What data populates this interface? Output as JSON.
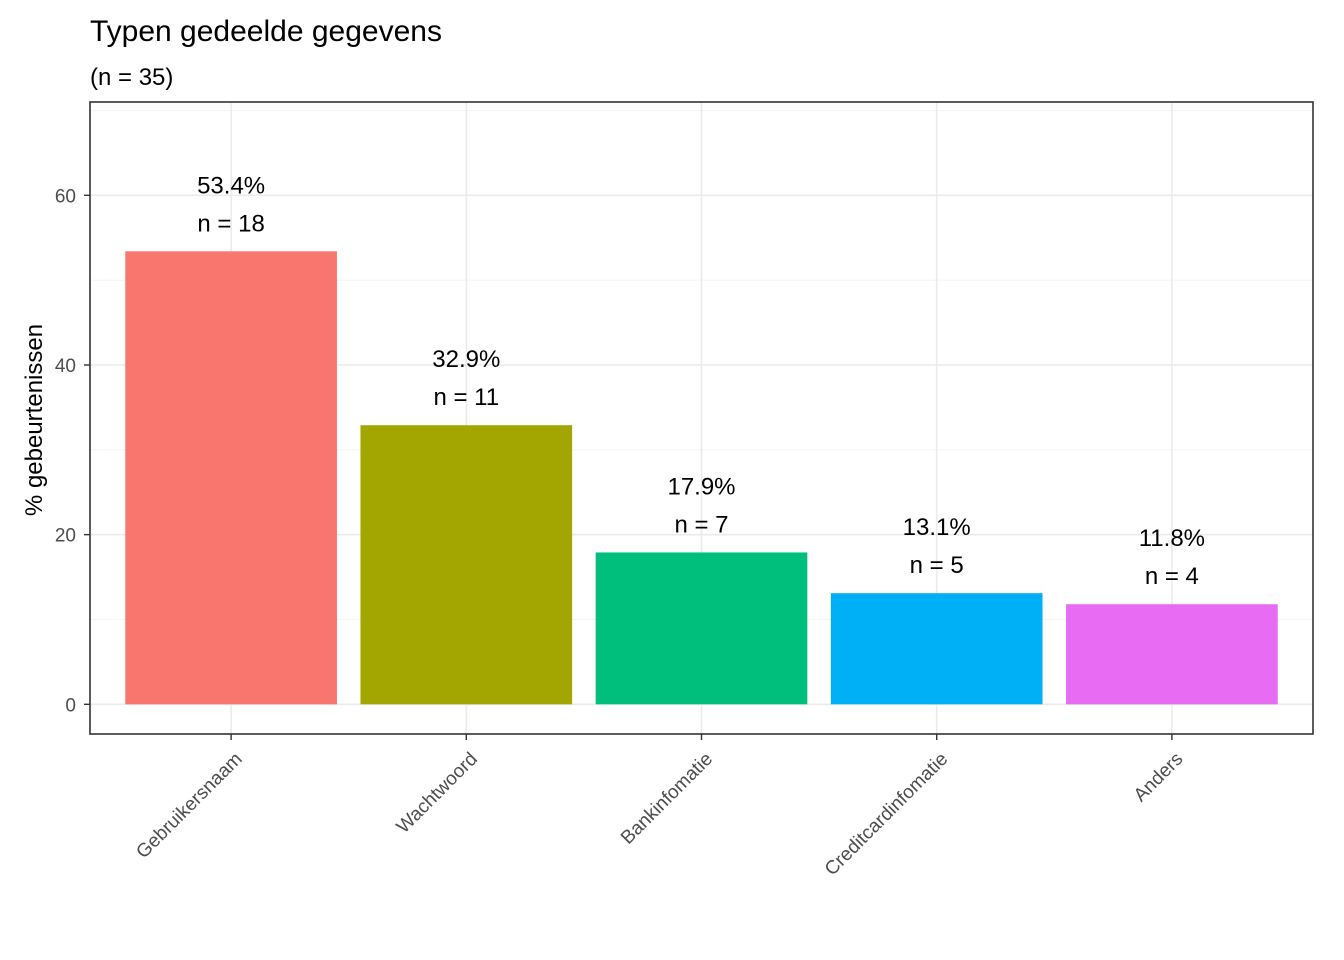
{
  "chart_data": {
    "type": "bar",
    "title": "Typen gedeelde gegevens",
    "subtitle": "(n = 35)",
    "xlabel": "",
    "ylabel": "% gebeurtenissen",
    "categories": [
      "Gebruikersnaam",
      "Wachtwoord",
      "Bankinfomatie",
      "Creditcardinfomatie",
      "Anders"
    ],
    "values": [
      53.4,
      32.9,
      17.9,
      13.1,
      11.8
    ],
    "counts": [
      18,
      11,
      7,
      5,
      4
    ],
    "percent_labels": [
      "53.4%",
      "32.9%",
      "17.9%",
      "13.1%",
      "11.8%"
    ],
    "count_labels": [
      "n = 18",
      "n = 11",
      "n = 7",
      "n = 5",
      "n = 4"
    ],
    "colors": [
      "#F8766D",
      "#A3A500",
      "#00BF7D",
      "#00B0F6",
      "#E76BF3"
    ],
    "yticks": [
      "0",
      "20",
      "40",
      "60"
    ],
    "ytick_values": [
      0,
      20,
      40,
      60
    ],
    "ylim": [
      -3.5,
      71
    ],
    "grid": true,
    "legend": "none"
  }
}
